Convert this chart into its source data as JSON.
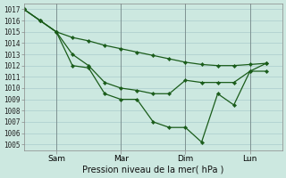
{
  "background_color": "#cce8e0",
  "grid_color": "#aacccc",
  "line_color": "#1a5c1a",
  "title": "Pression niveau de la mer( hPa )",
  "x_ticks_labels": [
    "Sam",
    "Mar",
    "Dim",
    "Lun"
  ],
  "x_ticks_pos": [
    2,
    6,
    10,
    14
  ],
  "ylim": [
    1004.5,
    1017.5
  ],
  "yticks": [
    1005,
    1006,
    1007,
    1008,
    1009,
    1010,
    1011,
    1012,
    1013,
    1014,
    1015,
    1016,
    1017
  ],
  "xlim": [
    0,
    16
  ],
  "x_upper": [
    0,
    1,
    2,
    3,
    4,
    5,
    6,
    7,
    8,
    9,
    10,
    11,
    12,
    13,
    14,
    15
  ],
  "y_upper": [
    1017.0,
    1016.0,
    1015.0,
    1014.5,
    1014.2,
    1013.8,
    1013.5,
    1013.2,
    1012.9,
    1012.6,
    1012.3,
    1012.1,
    1012.0,
    1012.0,
    1012.1,
    1012.2
  ],
  "x_middle": [
    0,
    1,
    2,
    3,
    4,
    5,
    6,
    7,
    8,
    9,
    10,
    11,
    12,
    13,
    14,
    15
  ],
  "y_middle": [
    1017.0,
    1016.0,
    1015.0,
    1013.0,
    1012.0,
    1010.5,
    1010.0,
    1009.8,
    1009.5,
    1009.5,
    1010.7,
    1010.5,
    1010.5,
    1010.5,
    1011.5,
    1011.5
  ],
  "x_lower": [
    0,
    1,
    2,
    3,
    4,
    5,
    6,
    7,
    8,
    9,
    10,
    11,
    12,
    13,
    14,
    15
  ],
  "y_lower": [
    1017.0,
    1016.0,
    1015.0,
    1012.0,
    1011.8,
    1009.5,
    1009.0,
    1009.0,
    1007.0,
    1006.5,
    1006.5,
    1005.2,
    1009.5,
    1008.5,
    1011.5,
    1012.2
  ]
}
